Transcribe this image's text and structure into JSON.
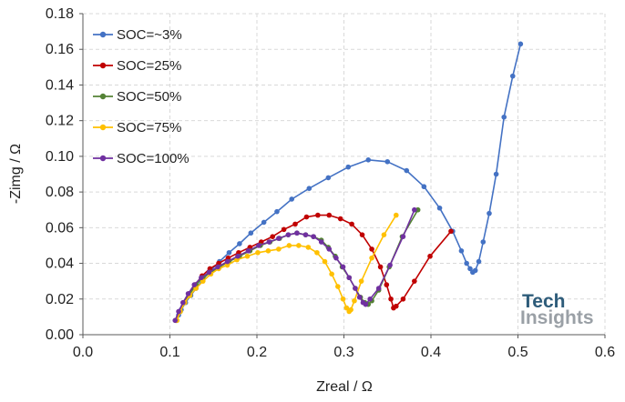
{
  "chart_data": {
    "type": "scatter",
    "title": "",
    "xlabel": "Zreal / Ω",
    "ylabel": "-Zimg / Ω",
    "xlim": [
      0,
      0.6
    ],
    "ylim": [
      0,
      0.18
    ],
    "xticks": [
      0.0,
      0.1,
      0.2,
      0.3,
      0.4,
      0.5,
      0.6
    ],
    "yticks": [
      0.0,
      0.02,
      0.04,
      0.06,
      0.08,
      0.1,
      0.12,
      0.14,
      0.16,
      0.18
    ],
    "xtick_labels": [
      "0.0",
      "0.1",
      "0.2",
      "0.3",
      "0.4",
      "0.5",
      "0.6"
    ],
    "ytick_labels": [
      "0.00",
      "0.02",
      "0.04",
      "0.06",
      "0.08",
      "0.10",
      "0.12",
      "0.14",
      "0.16",
      "0.18"
    ],
    "grid": true,
    "legend_position": "top-left",
    "series": [
      {
        "name": "SOC=~3%",
        "color": "#4472C4",
        "x": [
          0.107,
          0.11,
          0.113,
          0.118,
          0.124,
          0.13,
          0.138,
          0.147,
          0.157,
          0.168,
          0.18,
          0.193,
          0.208,
          0.223,
          0.24,
          0.26,
          0.282,
          0.305,
          0.328,
          0.35,
          0.372,
          0.392,
          0.41,
          0.425,
          0.435,
          0.441,
          0.445,
          0.448,
          0.451,
          0.455,
          0.46,
          0.467,
          0.475,
          0.484,
          0.494,
          0.503
        ],
        "y": [
          0.008,
          0.011,
          0.014,
          0.018,
          0.022,
          0.026,
          0.031,
          0.036,
          0.041,
          0.046,
          0.051,
          0.057,
          0.063,
          0.069,
          0.076,
          0.082,
          0.088,
          0.094,
          0.098,
          0.097,
          0.092,
          0.083,
          0.071,
          0.058,
          0.047,
          0.04,
          0.037,
          0.035,
          0.036,
          0.041,
          0.052,
          0.068,
          0.09,
          0.122,
          0.145,
          0.163
        ]
      },
      {
        "name": "SOC=25%",
        "color": "#C00000",
        "x": [
          0.107,
          0.111,
          0.116,
          0.122,
          0.129,
          0.137,
          0.146,
          0.156,
          0.167,
          0.179,
          0.192,
          0.205,
          0.218,
          0.231,
          0.244,
          0.257,
          0.27,
          0.283,
          0.296,
          0.309,
          0.321,
          0.332,
          0.342,
          0.349,
          0.354,
          0.357,
          0.36,
          0.368,
          0.381,
          0.399,
          0.423
        ],
        "y": [
          0.008,
          0.013,
          0.018,
          0.023,
          0.028,
          0.033,
          0.037,
          0.04,
          0.043,
          0.046,
          0.049,
          0.052,
          0.055,
          0.059,
          0.062,
          0.066,
          0.067,
          0.067,
          0.065,
          0.062,
          0.056,
          0.048,
          0.038,
          0.028,
          0.02,
          0.015,
          0.016,
          0.02,
          0.03,
          0.044,
          0.058
        ]
      },
      {
        "name": "SOC=50%",
        "color": "#548235",
        "x": [
          0.108,
          0.112,
          0.117,
          0.123,
          0.13,
          0.138,
          0.147,
          0.157,
          0.168,
          0.18,
          0.192,
          0.204,
          0.215,
          0.226,
          0.236,
          0.246,
          0.256,
          0.265,
          0.274,
          0.282,
          0.29,
          0.298,
          0.306,
          0.313,
          0.319,
          0.324,
          0.328,
          0.332,
          0.34,
          0.352,
          0.367,
          0.385
        ],
        "y": [
          0.008,
          0.013,
          0.018,
          0.023,
          0.028,
          0.032,
          0.035,
          0.038,
          0.041,
          0.044,
          0.047,
          0.05,
          0.052,
          0.054,
          0.056,
          0.057,
          0.056,
          0.055,
          0.053,
          0.049,
          0.044,
          0.038,
          0.032,
          0.026,
          0.021,
          0.018,
          0.017,
          0.019,
          0.025,
          0.038,
          0.055,
          0.07
        ]
      },
      {
        "name": "SOC=75%",
        "color": "#FFC000",
        "x": [
          0.108,
          0.112,
          0.117,
          0.123,
          0.13,
          0.138,
          0.147,
          0.156,
          0.166,
          0.177,
          0.189,
          0.201,
          0.213,
          0.225,
          0.237,
          0.248,
          0.259,
          0.269,
          0.278,
          0.286,
          0.293,
          0.299,
          0.303,
          0.306,
          0.308,
          0.312,
          0.32,
          0.332,
          0.346,
          0.36
        ],
        "y": [
          0.008,
          0.013,
          0.018,
          0.022,
          0.026,
          0.03,
          0.034,
          0.037,
          0.039,
          0.042,
          0.044,
          0.046,
          0.047,
          0.048,
          0.05,
          0.05,
          0.049,
          0.046,
          0.041,
          0.034,
          0.027,
          0.02,
          0.015,
          0.013,
          0.014,
          0.019,
          0.03,
          0.043,
          0.056,
          0.067
        ]
      },
      {
        "name": "SOC=100%",
        "color": "#7030A0",
        "x": [
          0.106,
          0.11,
          0.115,
          0.121,
          0.128,
          0.136,
          0.145,
          0.155,
          0.166,
          0.178,
          0.19,
          0.202,
          0.214,
          0.225,
          0.236,
          0.246,
          0.256,
          0.265,
          0.274,
          0.283,
          0.291,
          0.299,
          0.306,
          0.313,
          0.318,
          0.322,
          0.325,
          0.33,
          0.34,
          0.353,
          0.368,
          0.381
        ],
        "y": [
          0.008,
          0.013,
          0.018,
          0.023,
          0.028,
          0.032,
          0.035,
          0.038,
          0.041,
          0.044,
          0.047,
          0.05,
          0.052,
          0.054,
          0.056,
          0.057,
          0.056,
          0.055,
          0.052,
          0.048,
          0.043,
          0.038,
          0.032,
          0.026,
          0.021,
          0.018,
          0.017,
          0.02,
          0.026,
          0.039,
          0.055,
          0.07
        ]
      }
    ]
  },
  "logo": {
    "line1": "Tech",
    "line2": "Insights",
    "colors": {
      "tech": "#2E5C7A",
      "insights": "#9AA0A6"
    }
  }
}
